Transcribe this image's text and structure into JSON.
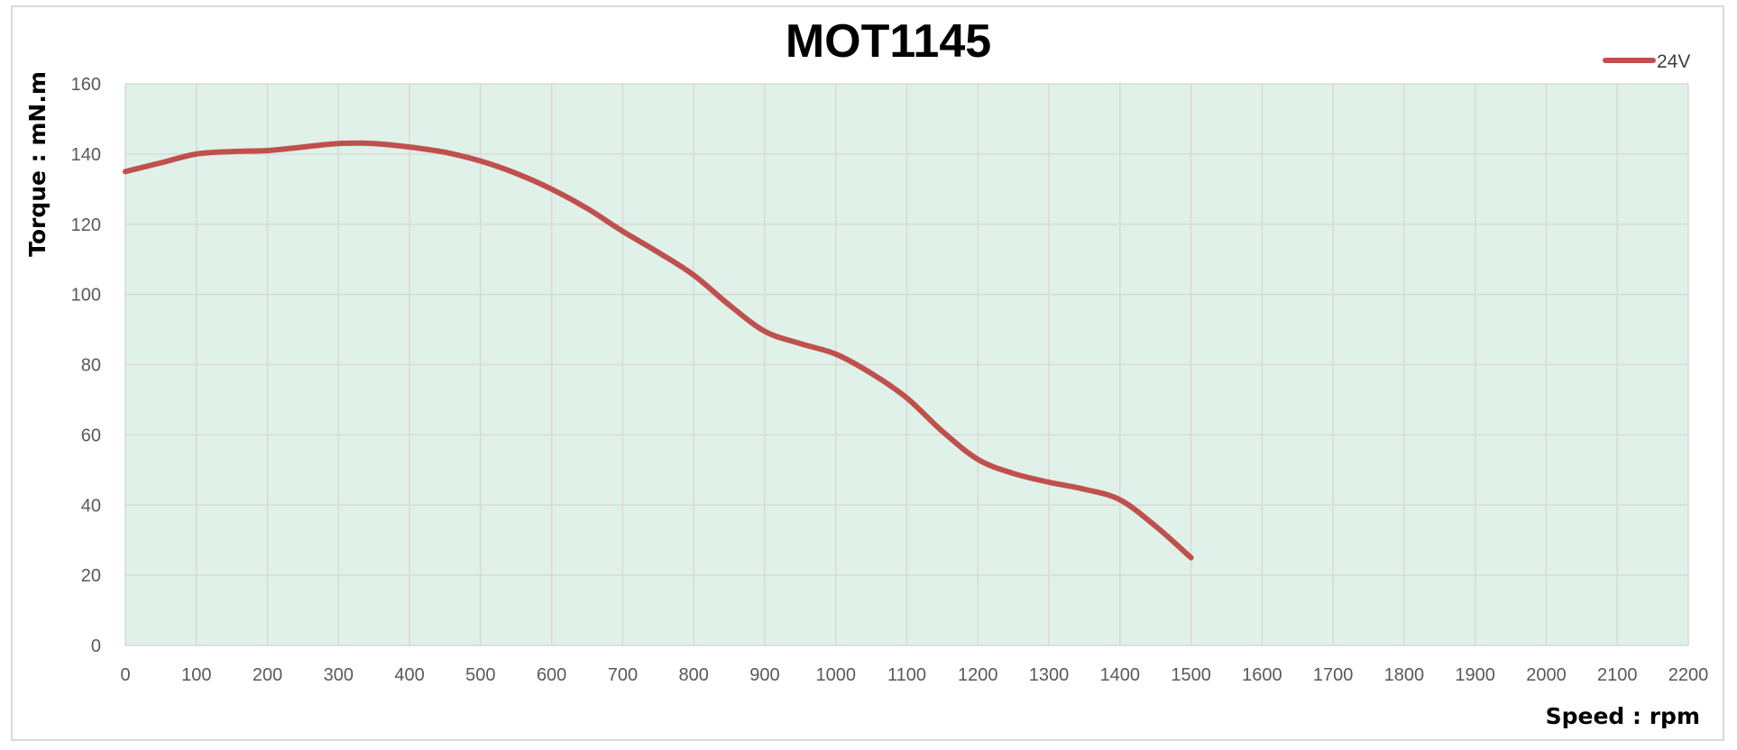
{
  "chart_data": {
    "type": "line",
    "title": "MOT1145",
    "xlabel": "Speed : rpm",
    "ylabel": "Torque : mN.m",
    "xlim": [
      0,
      2200
    ],
    "ylim": [
      0,
      160
    ],
    "xticks": [
      0,
      100,
      200,
      300,
      400,
      500,
      600,
      700,
      800,
      900,
      1000,
      1100,
      1200,
      1300,
      1400,
      1500,
      1600,
      1700,
      1800,
      1900,
      2000,
      2100,
      2200
    ],
    "yticks": [
      0,
      20,
      40,
      60,
      80,
      100,
      120,
      140,
      160
    ],
    "grid": true,
    "legend_position": "top-right",
    "plot_background": "#dff1e8",
    "gridline_color": "#d9d9d9",
    "series": [
      {
        "name": "24V",
        "color": "#c0504d",
        "x": [
          0,
          50,
          100,
          150,
          200,
          250,
          300,
          350,
          400,
          450,
          500,
          550,
          600,
          650,
          700,
          750,
          800,
          850,
          900,
          950,
          1000,
          1050,
          1100,
          1150,
          1200,
          1250,
          1300,
          1350,
          1400,
          1450,
          1500
        ],
        "y": [
          135,
          137.5,
          140,
          140.7,
          141,
          142,
          143,
          143,
          142,
          140.5,
          138,
          134.5,
          130,
          124.5,
          118,
          112,
          105.5,
          97,
          89.5,
          86,
          83,
          77.5,
          70.5,
          61,
          53,
          49,
          46.5,
          44.5,
          41.5,
          34,
          25
        ]
      }
    ]
  }
}
